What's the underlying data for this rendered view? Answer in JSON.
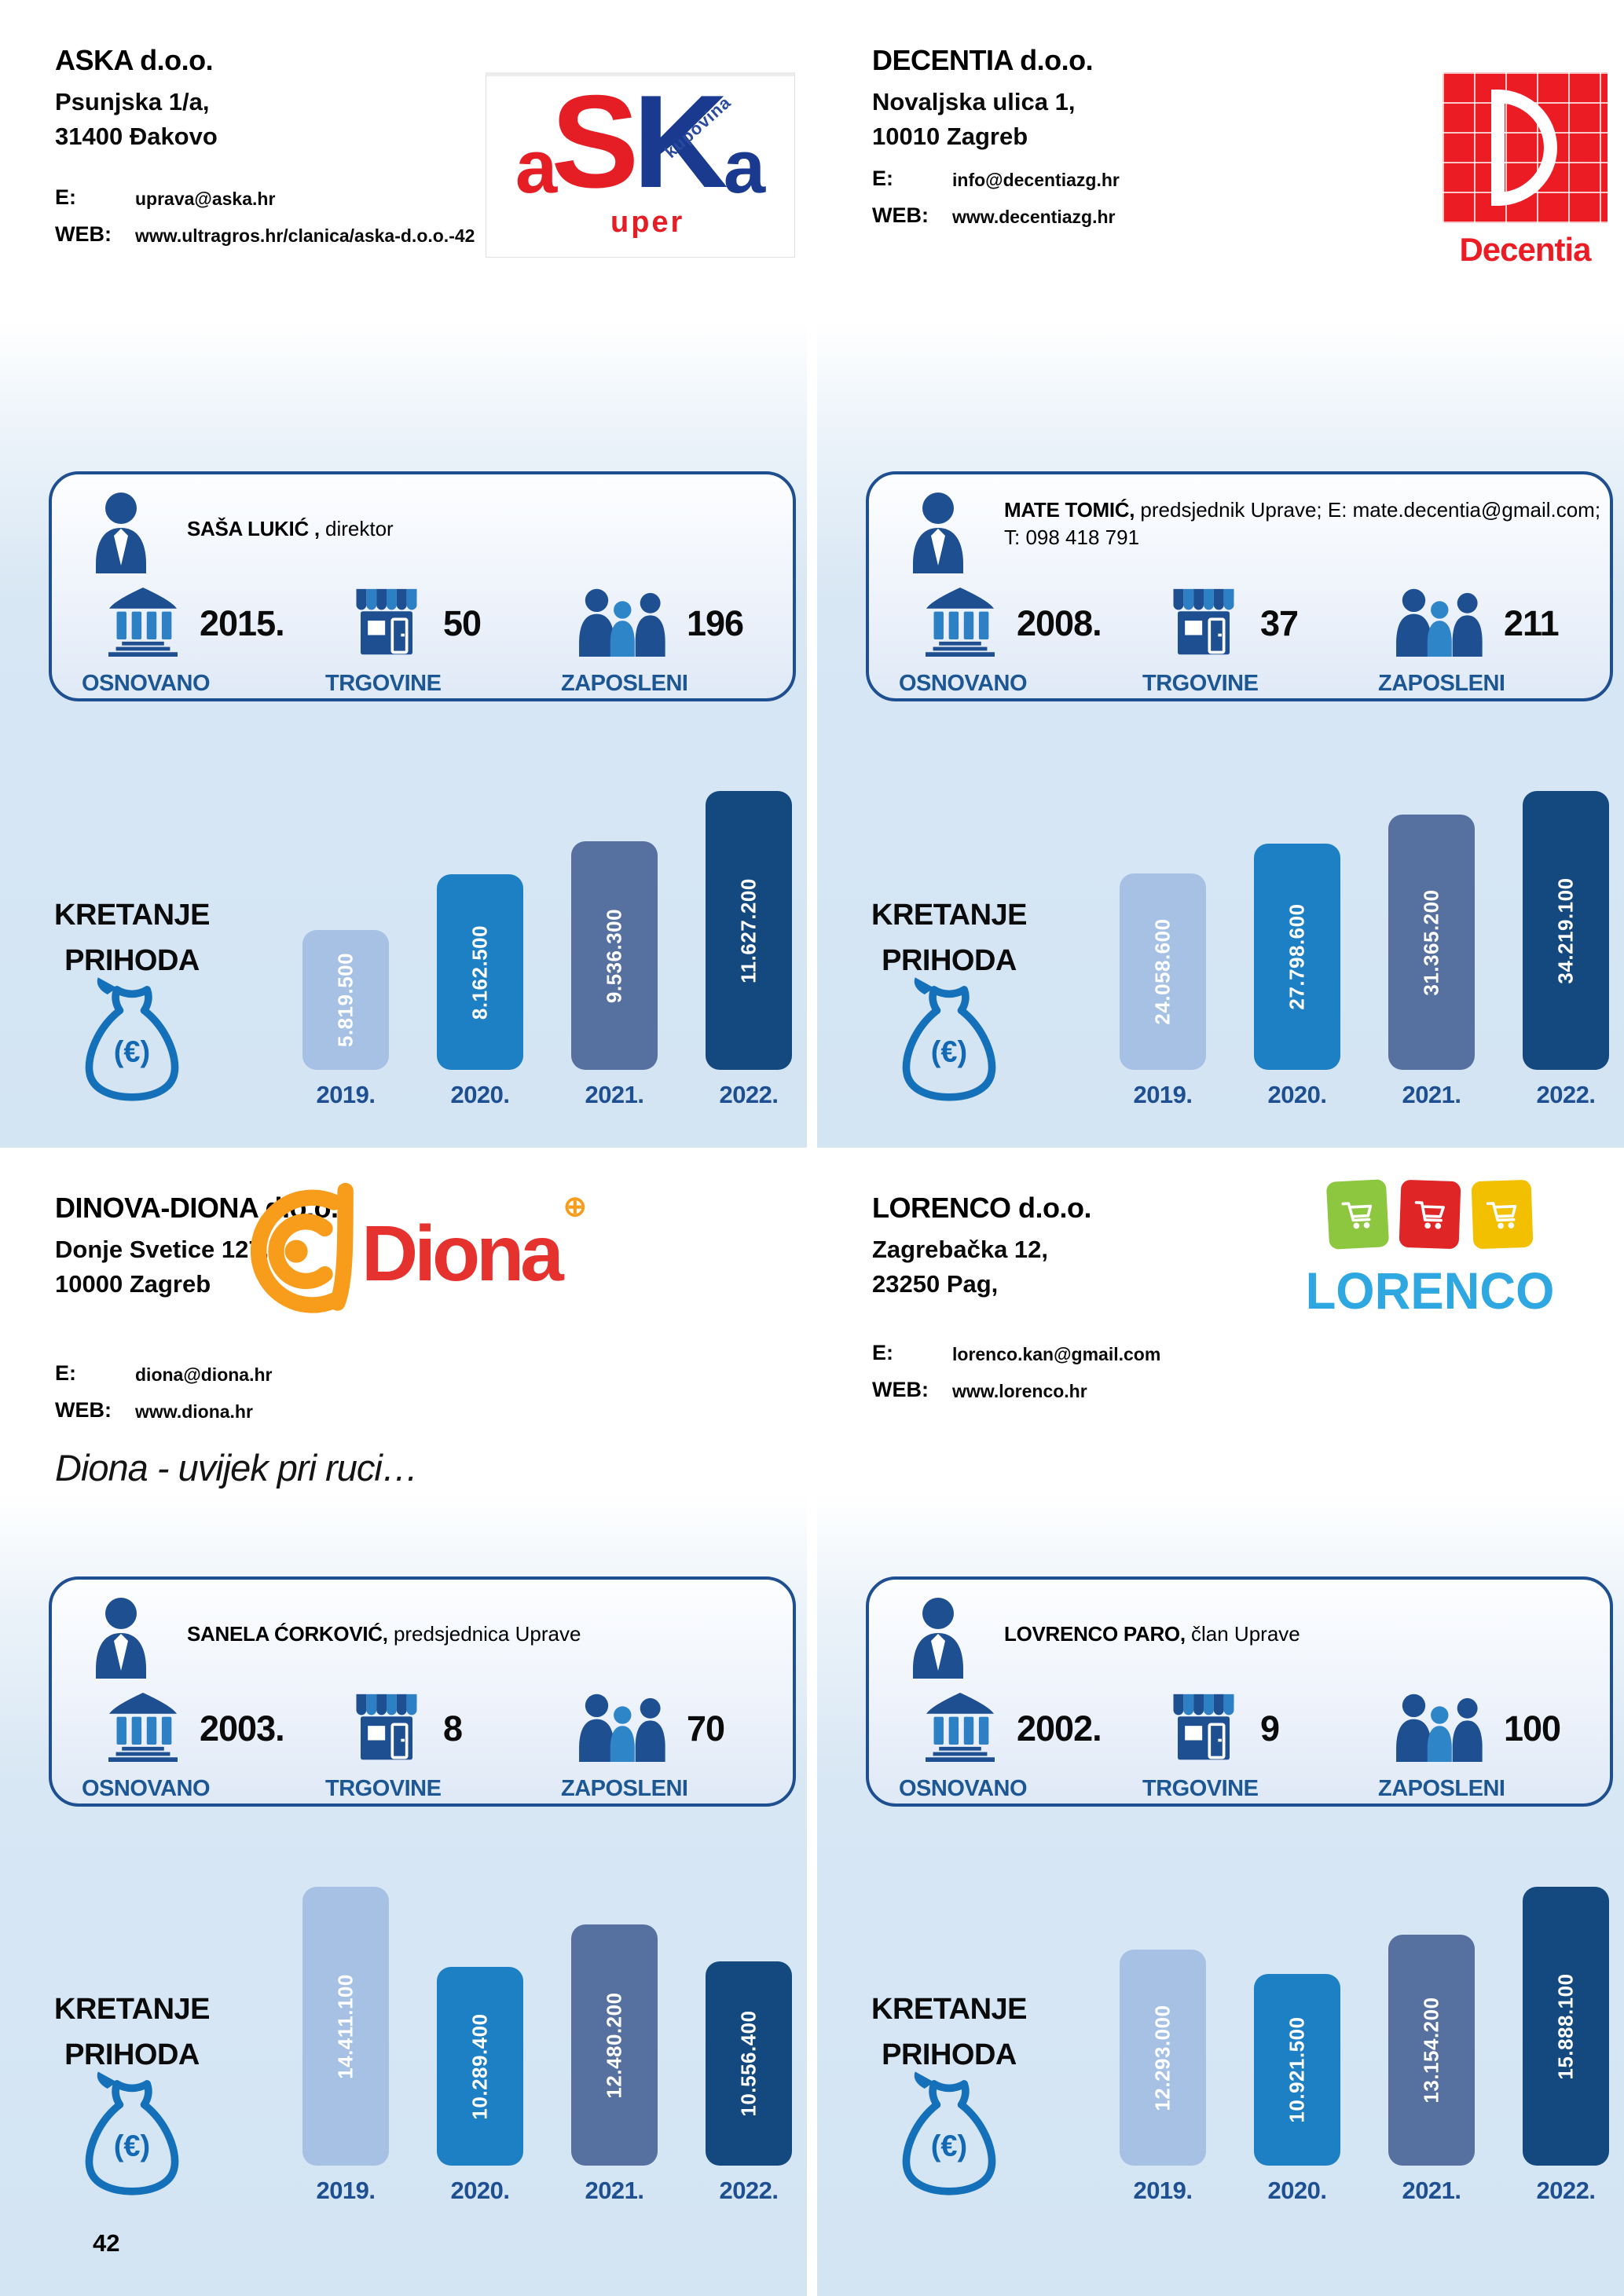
{
  "page": {
    "number": "42"
  },
  "ui": {
    "email_label": "E:",
    "web_label": "WEB:",
    "founded_label": "OSNOVANO",
    "stores_label": "TRGOVINE",
    "employees_label": "ZAPOSLENI",
    "chart_title_1": "KRETANJE",
    "chart_title_2": "PRIHODA",
    "euro_badge": "(€)"
  },
  "companies": [
    {
      "name": "ASKA d.o.o.",
      "address1": "Psunjska 1/a,",
      "address2": "31400 Đakovo",
      "email": "uprava@aska.hr",
      "web": "www.ultragros.hr/clanica/aska-d.o.o.-42",
      "person_name": "SAŠA LUKIĆ ,",
      "person_role": "direktor",
      "founded": "2015.",
      "stores": "50",
      "employees": "196",
      "logo": {
        "a1": "a",
        "s": "S",
        "k": "K",
        "a2": "a",
        "uper": "uper",
        "kupovina": "kupovina"
      }
    },
    {
      "name": "DECENTIA d.o.o.",
      "address1": "Novaljska ulica 1,",
      "address2": "10010 Zagreb",
      "email": "info@decentiazg.hr",
      "web": "www.decentiazg.hr",
      "person_name": "MATE TOMIĆ,",
      "person_role": "predsjednik Uprave; E: mate.decentia@gmail.com; T: 098 418 791",
      "founded": "2008.",
      "stores": "37",
      "employees": "211",
      "logo": {
        "text": "Decentia"
      }
    },
    {
      "name": "DINOVA-DIONA d.o.o.",
      "address1": "Donje Svetice 127,",
      "address2": "10000 Zagreb",
      "email": "diona@diona.hr",
      "web": "www.diona.hr",
      "slogan": "Diona - uvijek pri ruci…",
      "person_name": "SANELA ĆORKOVIĆ,",
      "person_role": "predsjednica Uprave",
      "founded": "2003.",
      "stores": "8",
      "employees": "70",
      "logo": {
        "text": "Diona",
        "plus": "⊕"
      }
    },
    {
      "name": "LORENCO d.o.o.",
      "address1": "Zagrebačka 12,",
      "address2": "23250 Pag,",
      "email": "lorenco.kan@gmail.com",
      "web": "www.lorenco.hr",
      "person_name": "LOVRENCO PARO,",
      "person_role": "član Uprave",
      "founded": "2002.",
      "stores": "9",
      "employees": "100",
      "logo": {
        "text": "LORENCO"
      }
    }
  ],
  "chart_data": [
    {
      "type": "bar",
      "company": "ASKA d.o.o.",
      "title": "KRETANJE PRIHODA",
      "unit": "€",
      "categories": [
        "2019.",
        "2020.",
        "2021.",
        "2022."
      ],
      "values": [
        5819500,
        8162500,
        9536300,
        11627200
      ],
      "value_labels": [
        "5.819.500",
        "8.162.500",
        "9.536.300",
        "11.627.200"
      ],
      "colors": [
        "#a6c1e4",
        "#1d7fc4",
        "#56719f",
        "#13497e"
      ],
      "legend": "none",
      "grid": "off"
    },
    {
      "type": "bar",
      "company": "DECENTIA d.o.o.",
      "title": "KRETANJE PRIHODA",
      "unit": "€",
      "categories": [
        "2019.",
        "2020.",
        "2021.",
        "2022."
      ],
      "values": [
        24058600,
        27798600,
        31365200,
        34219100
      ],
      "value_labels": [
        "24.058.600",
        "27.798.600",
        "31.365.200",
        "34.219.100"
      ],
      "colors": [
        "#a6c1e4",
        "#1d7fc4",
        "#56719f",
        "#13497e"
      ],
      "legend": "none",
      "grid": "off"
    },
    {
      "type": "bar",
      "company": "DINOVA-DIONA d.o.o.",
      "title": "KRETANJE PRIHODA",
      "unit": "€",
      "categories": [
        "2019.",
        "2020.",
        "2021.",
        "2022."
      ],
      "values": [
        14411100,
        10289400,
        12480200,
        10556400
      ],
      "value_labels": [
        "14.411.100",
        "10.289.400",
        "12.480.200",
        "10.556.400"
      ],
      "colors": [
        "#a6c1e4",
        "#1d7fc4",
        "#56719f",
        "#13497e"
      ],
      "legend": "none",
      "grid": "off"
    },
    {
      "type": "bar",
      "company": "LORENCO d.o.o.",
      "title": "KRETANJE PRIHODA",
      "unit": "€",
      "categories": [
        "2019.",
        "2020.",
        "2021.",
        "2022."
      ],
      "values": [
        12293000,
        10921500,
        13154200,
        15888100
      ],
      "value_labels": [
        "12.293.000",
        "10.921.500",
        "13.154.200",
        "15.888.100"
      ],
      "colors": [
        "#a6c1e4",
        "#1d7fc4",
        "#56719f",
        "#13497e"
      ],
      "legend": "none",
      "grid": "off"
    }
  ]
}
